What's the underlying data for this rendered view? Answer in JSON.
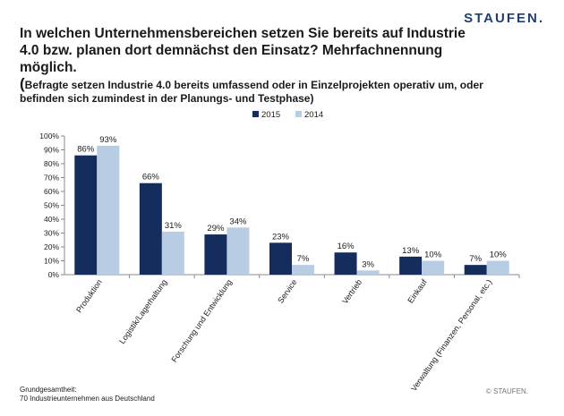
{
  "logo": "STAUFEN.",
  "title": "In welchen Unternehmensbereichen setzen Sie bereits auf Industrie 4.0 bzw. planen dort demnächst den Einsatz? Mehrfachnennung möglich.",
  "subtitle_paren": "(",
  "subtitle": "Befragte setzen Industrie 4.0 bereits umfassend oder in Einzelprojekten operativ um, oder befinden sich zumindest in der Planungs- und Testphase)",
  "footer": {
    "line1": "Grundgesamtheit:",
    "line2": "70 Industrieunternehmen aus Deutschland",
    "copyright": "© STAUFEN."
  },
  "colors": {
    "series2015": "#152d5c",
    "series2014": "#b8cce4",
    "brand": "#1f3f73"
  },
  "chart_data": {
    "type": "bar",
    "categories": [
      "Produktion",
      "Logistik/Lagerhaltung",
      "Forschung und Entwicklung",
      "Service",
      "Vertrieb",
      "Einkauf",
      "Verwaltung (Finanzen, Personal, etc.)"
    ],
    "series": [
      {
        "name": "2015",
        "values": [
          86,
          66,
          29,
          23,
          16,
          13,
          7
        ],
        "labels": [
          "86%",
          "66%",
          "29%",
          "23%",
          "16%",
          "13%",
          "7%"
        ]
      },
      {
        "name": "2014",
        "values": [
          93,
          31,
          34,
          7,
          3,
          10,
          10
        ],
        "labels": [
          "93%",
          "31%",
          "34%",
          "7%",
          "3%",
          "10%",
          "10%"
        ]
      }
    ],
    "yticks": [
      "0%",
      "10%",
      "20%",
      "30%",
      "40%",
      "50%",
      "60%",
      "70%",
      "80%",
      "90%",
      "100%"
    ],
    "ylim": [
      0,
      100
    ],
    "legend": "top-center",
    "grid": false
  }
}
